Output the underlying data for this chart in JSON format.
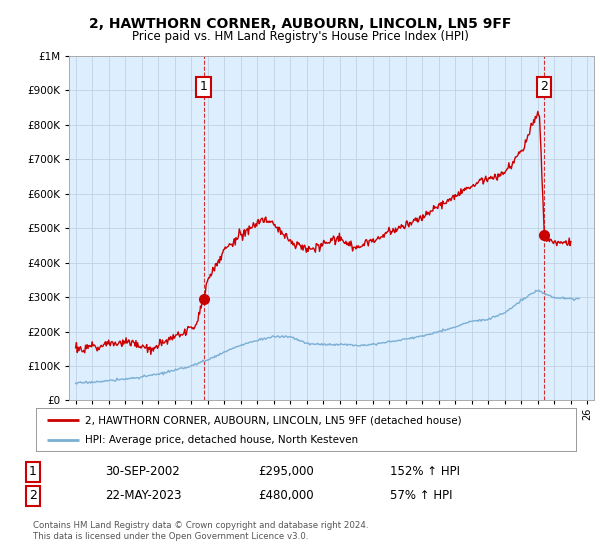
{
  "title": "2, HAWTHORN CORNER, AUBOURN, LINCOLN, LN5 9FF",
  "subtitle": "Price paid vs. HM Land Registry's House Price Index (HPI)",
  "legend_line1": "2, HAWTHORN CORNER, AUBOURN, LINCOLN, LN5 9FF (detached house)",
  "legend_line2": "HPI: Average price, detached house, North Kesteven",
  "transaction1_date": "30-SEP-2002",
  "transaction1_price": "£295,000",
  "transaction1_hpi": "152% ↑ HPI",
  "transaction2_date": "22-MAY-2023",
  "transaction2_price": "£480,000",
  "transaction2_hpi": "57% ↑ HPI",
  "footer": "Contains HM Land Registry data © Crown copyright and database right 2024.\nThis data is licensed under the Open Government Licence v3.0.",
  "red_color": "#cc0000",
  "blue_color": "#7bafd4",
  "background_color": "#ddeeff",
  "plot_bg_color": "#ffffff",
  "grid_color": "#bbccdd",
  "transaction1_x": 2002.75,
  "transaction2_x": 2023.39,
  "transaction1_y": 295000,
  "transaction2_y": 480000,
  "ylim": [
    0,
    1000000
  ],
  "xlim_left": 1994.6,
  "xlim_right": 2026.4
}
